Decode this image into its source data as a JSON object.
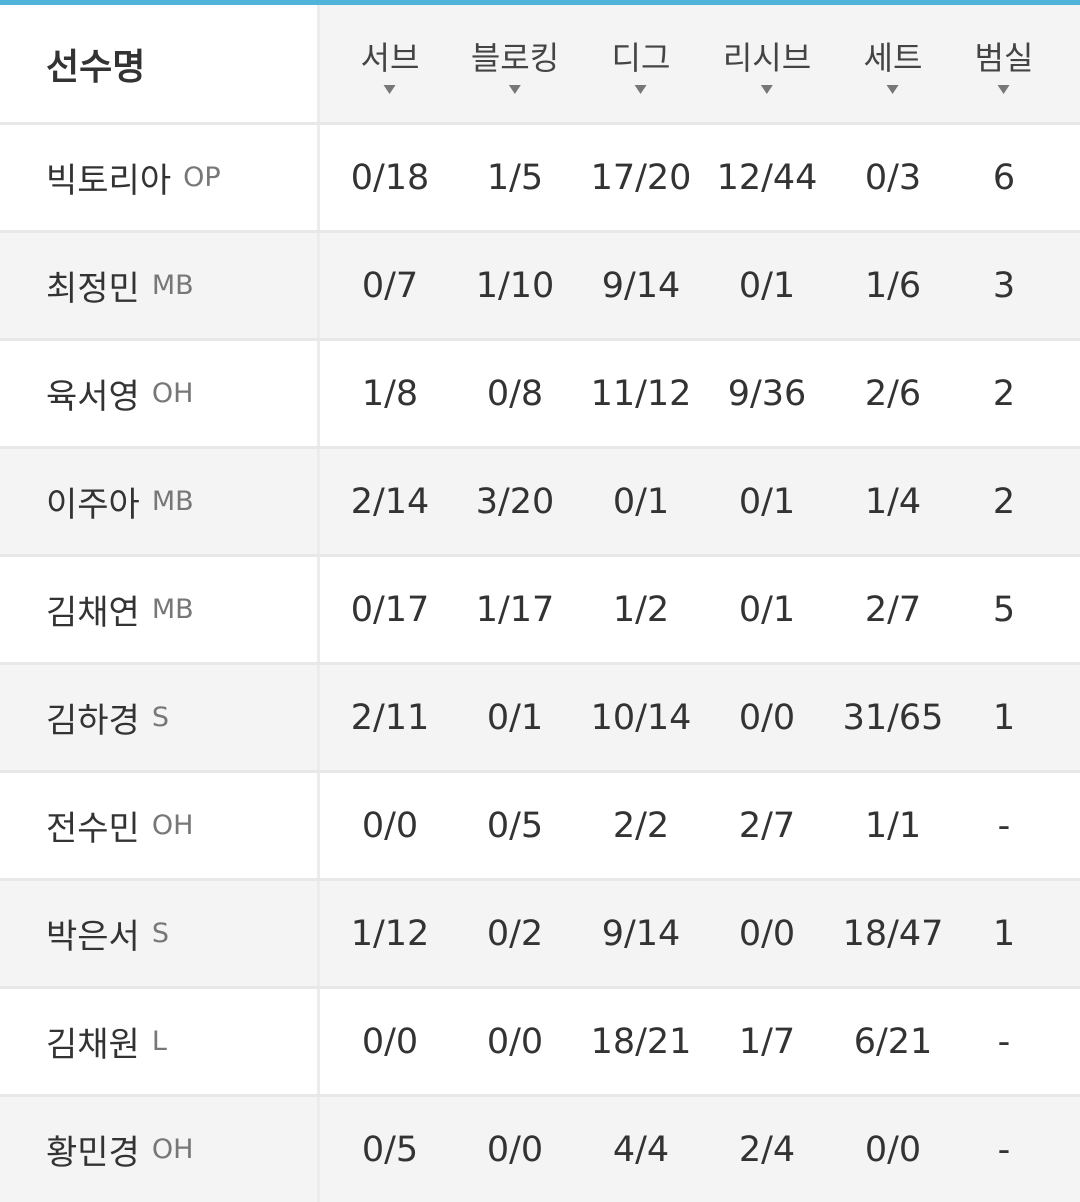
{
  "colors": {
    "accent": "#4fb3dc",
    "alt_row": "#f4f4f4"
  },
  "header": {
    "name_label": "선수명",
    "columns": [
      "서브",
      "블로킹",
      "디그",
      "리시브",
      "세트",
      "범실"
    ],
    "sort_icon": "triangle-down-icon"
  },
  "rows": [
    {
      "name": "빅토리아",
      "pos": "OP",
      "stats": [
        "0/18",
        "1/5",
        "17/20",
        "12/44",
        "0/3",
        "6"
      ]
    },
    {
      "name": "최정민",
      "pos": "MB",
      "stats": [
        "0/7",
        "1/10",
        "9/14",
        "0/1",
        "1/6",
        "3"
      ]
    },
    {
      "name": "육서영",
      "pos": "OH",
      "stats": [
        "1/8",
        "0/8",
        "11/12",
        "9/36",
        "2/6",
        "2"
      ]
    },
    {
      "name": "이주아",
      "pos": "MB",
      "stats": [
        "2/14",
        "3/20",
        "0/1",
        "0/1",
        "1/4",
        "2"
      ]
    },
    {
      "name": "김채연",
      "pos": "MB",
      "stats": [
        "0/17",
        "1/17",
        "1/2",
        "0/1",
        "2/7",
        "5"
      ]
    },
    {
      "name": "김하경",
      "pos": "S",
      "stats": [
        "2/11",
        "0/1",
        "10/14",
        "0/0",
        "31/65",
        "1"
      ]
    },
    {
      "name": "전수민",
      "pos": "OH",
      "stats": [
        "0/0",
        "0/5",
        "2/2",
        "2/7",
        "1/1",
        "-"
      ]
    },
    {
      "name": "박은서",
      "pos": "S",
      "stats": [
        "1/12",
        "0/2",
        "9/14",
        "0/0",
        "18/47",
        "1"
      ]
    },
    {
      "name": "김채원",
      "pos": "L",
      "stats": [
        "0/0",
        "0/0",
        "18/21",
        "1/7",
        "6/21",
        "-"
      ]
    },
    {
      "name": "황민경",
      "pos": "OH",
      "stats": [
        "0/5",
        "0/0",
        "4/4",
        "2/4",
        "0/0",
        "-"
      ]
    }
  ]
}
